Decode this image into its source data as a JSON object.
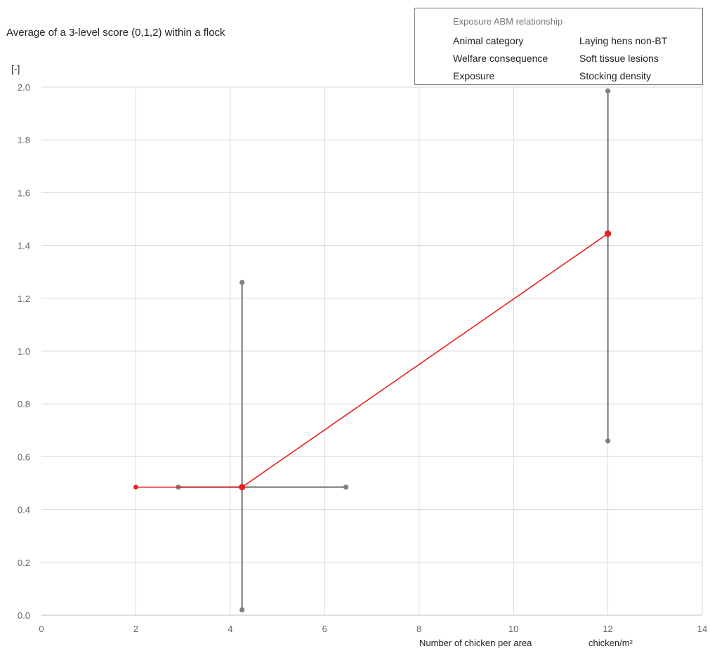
{
  "chart_data": {
    "type": "line",
    "ylabel": "Average of a 3-level score (0,1,2) within a flock",
    "yunit": "[-]",
    "xlabel": "Number of chicken per area",
    "xunit": "chicken/m²",
    "xlim": [
      0,
      14
    ],
    "ylim": [
      0,
      2.0
    ],
    "x_ticks": [
      0,
      2,
      4,
      6,
      8,
      10,
      12,
      14
    ],
    "y_ticks": [
      0.0,
      0.2,
      0.4,
      0.6,
      0.8,
      1.0,
      1.2,
      1.4,
      1.6,
      1.8,
      2.0
    ],
    "y_tick_labels": [
      "0.0",
      "0.2",
      "0.4",
      "0.6",
      "0.8",
      "1.0",
      "1.2",
      "1.4",
      "1.6",
      "1.8",
      "2.0"
    ],
    "grid": true,
    "series": [
      {
        "color": "#e8201f",
        "points": [
          {
            "x": 2.0,
            "y": 0.485
          },
          {
            "x": 2.9,
            "y": 0.485
          },
          {
            "x": 4.25,
            "y": 0.485
          },
          {
            "x": 12.0,
            "y": 1.445
          }
        ]
      }
    ],
    "error_bars": [
      {
        "orientation": "vertical",
        "x": 4.25,
        "y_low": 0.02,
        "y_high": 1.26
      },
      {
        "orientation": "horizontal",
        "y": 0.485,
        "x_low": 2.9,
        "x_high": 6.45
      },
      {
        "orientation": "vertical",
        "x": 12.0,
        "y_low": 0.66,
        "y_high": 1.985
      }
    ],
    "error_bar_color": "#7f7f7f",
    "legend": {
      "title": "Exposure ABM relationship",
      "rows": [
        {
          "label": "Animal category",
          "value": "Laying hens non-BT"
        },
        {
          "label": "Welfare consequence",
          "value": "Soft tissue lesions"
        },
        {
          "label": "Exposure",
          "value": "Stocking density"
        }
      ],
      "placement": "top-right"
    }
  }
}
